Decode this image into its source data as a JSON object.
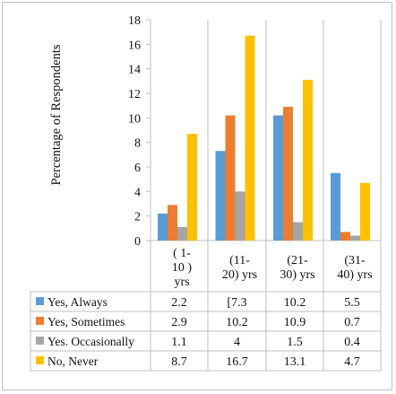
{
  "chart_data": {
    "type": "bar",
    "ylabel": "Percentage of Respondents",
    "ylim": [
      0,
      18
    ],
    "yticks": [
      0,
      2,
      4,
      6,
      8,
      10,
      12,
      14,
      16,
      18
    ],
    "grid": false,
    "legend": "bottom-data-table",
    "categories": [
      [
        "( 1-",
        "10 )",
        "yrs"
      ],
      [
        "(11-",
        "20) yrs"
      ],
      [
        "(21-",
        "30) yrs"
      ],
      [
        "(31-",
        "40) yrs"
      ]
    ],
    "series": [
      {
        "name": "Yes, Always",
        "color": "#5b9bd5",
        "values": [
          2.2,
          7.3,
          10.2,
          5.5
        ],
        "labels": [
          "2.2",
          "[7.3",
          "10.2",
          "5.5"
        ]
      },
      {
        "name": "Yes, Sometimes",
        "color": "#ed7d31",
        "values": [
          2.9,
          10.2,
          10.9,
          0.7
        ],
        "labels": [
          "2.9",
          "10.2",
          "10.9",
          "0.7"
        ]
      },
      {
        "name": "Yes. Occasionally",
        "color": "#a5a5a5",
        "values": [
          1.1,
          4,
          1.5,
          0.4
        ],
        "labels": [
          "1.1",
          "4",
          "1.5",
          "0.4"
        ]
      },
      {
        "name": "No, Never",
        "color": "#ffc000",
        "values": [
          8.7,
          16.7,
          13.1,
          4.7
        ],
        "labels": [
          "8.7",
          "16.7",
          "13.1",
          "4.7"
        ]
      }
    ]
  }
}
